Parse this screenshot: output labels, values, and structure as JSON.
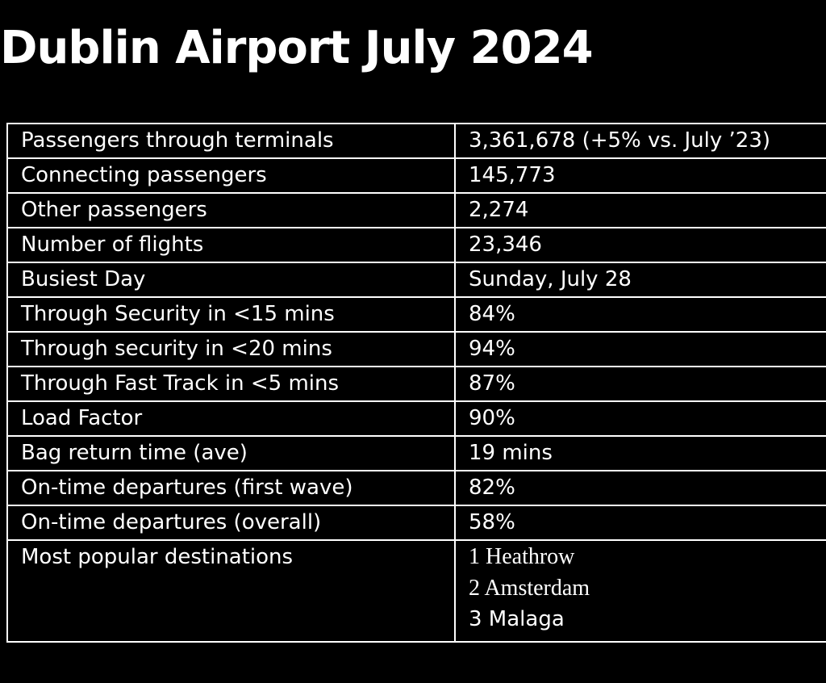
{
  "title": "Dublin Airport July 2024",
  "rows": [
    {
      "label": "Passengers through terminals",
      "value": "3,361,678 (+5% vs. July ’23)"
    },
    {
      "label": "Connecting passengers",
      "value": "145,773"
    },
    {
      "label": "Other passengers",
      "value": "2,274"
    },
    {
      "label": "Number of flights",
      "value": "23,346"
    },
    {
      "label": "Busiest Day",
      "value": "Sunday, July 28"
    },
    {
      "label": "Through Security in <15 mins",
      "value": "84%"
    },
    {
      "label": "Through security in <20 mins",
      "value": "94%"
    },
    {
      "label": "Through Fast Track in <5 mins",
      "value": "87%"
    },
    {
      "label": "Load Factor",
      "value": "90%"
    },
    {
      "label": "Bag return time (ave)",
      "value": "19 mins"
    },
    {
      "label": "On-time departures (first wave)",
      "value": "82%"
    },
    {
      "label": "On-time departures (overall)",
      "value": "58%"
    }
  ],
  "destinations": {
    "label": "Most popular destinations",
    "items": [
      "1 Heathrow",
      "2 Amsterdam",
      "3 Malaga"
    ]
  }
}
